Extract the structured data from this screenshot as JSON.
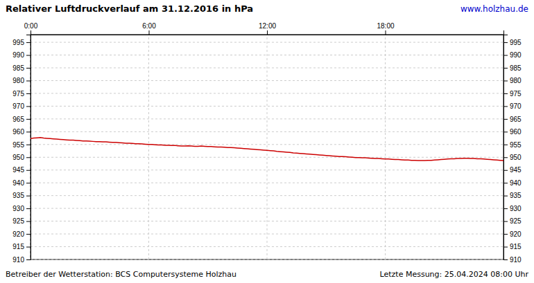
{
  "chart_data": {
    "type": "line",
    "title": "Relativer Luftdruckverlauf am 31.12.2016 in hPa",
    "annotations": [
      {
        "text": "www.holzhau.de",
        "color": "#0000cc"
      },
      {
        "text": "Betreiber der Wetterstation: BCS Computersysteme Holzhau",
        "color": "#000000"
      },
      {
        "text": "Letzte Messung: 25.04.2024 08:00 Uhr",
        "color": "#000000"
      }
    ],
    "color": "#cc0000",
    "grid": true,
    "xlim": [
      0,
      1440
    ],
    "xticks": [
      {
        "value": 0,
        "label": "0:00"
      },
      {
        "value": 360,
        "label": "6:00"
      },
      {
        "value": 720,
        "label": "12:00"
      },
      {
        "value": 1080,
        "label": "18:00"
      }
    ],
    "ylim": [
      910,
      998
    ],
    "yticks": [
      910,
      915,
      920,
      925,
      930,
      935,
      940,
      945,
      950,
      955,
      960,
      965,
      970,
      975,
      980,
      985,
      990,
      995
    ],
    "y2lim": [
      910,
      998
    ],
    "y2ticks": [
      910,
      915,
      920,
      925,
      930,
      935,
      940,
      945,
      950,
      955,
      960,
      965,
      970,
      975,
      980,
      985,
      990,
      995
    ],
    "x": [
      0,
      10,
      20,
      30,
      40,
      50,
      60,
      70,
      80,
      90,
      100,
      110,
      120,
      130,
      140,
      150,
      160,
      170,
      180,
      190,
      200,
      210,
      220,
      230,
      240,
      250,
      260,
      270,
      280,
      290,
      300,
      310,
      320,
      330,
      340,
      350,
      360,
      370,
      380,
      390,
      400,
      410,
      420,
      430,
      440,
      450,
      460,
      470,
      480,
      490,
      500,
      510,
      520,
      530,
      540,
      550,
      560,
      570,
      580,
      590,
      600,
      610,
      620,
      630,
      640,
      650,
      660,
      670,
      680,
      690,
      700,
      710,
      720,
      730,
      740,
      750,
      760,
      770,
      780,
      790,
      800,
      810,
      820,
      830,
      840,
      850,
      860,
      870,
      880,
      890,
      900,
      910,
      920,
      930,
      940,
      950,
      960,
      970,
      980,
      990,
      1000,
      1010,
      1020,
      1030,
      1040,
      1050,
      1060,
      1070,
      1080,
      1090,
      1100,
      1110,
      1120,
      1130,
      1140,
      1150,
      1160,
      1170,
      1180,
      1190,
      1200,
      1210,
      1220,
      1230,
      1240,
      1250,
      1260,
      1270,
      1280,
      1290,
      1300,
      1310,
      1320,
      1330,
      1340,
      1350,
      1360,
      1370,
      1380,
      1390,
      1400,
      1410,
      1420,
      1430,
      1440
    ],
    "values": [
      957.3,
      957.5,
      957.6,
      957.7,
      957.5,
      957.4,
      957.3,
      957.2,
      957.1,
      957.0,
      956.9,
      956.8,
      956.7,
      956.7,
      956.6,
      956.5,
      956.4,
      956.4,
      956.3,
      956.2,
      956.1,
      956.1,
      956.0,
      956.0,
      955.9,
      955.8,
      955.8,
      955.7,
      955.6,
      955.5,
      955.5,
      955.4,
      955.3,
      955.3,
      955.2,
      955.1,
      955.0,
      955.0,
      954.9,
      954.8,
      954.8,
      954.7,
      954.7,
      954.6,
      954.6,
      954.5,
      954.4,
      954.4,
      954.5,
      954.4,
      954.3,
      954.3,
      954.4,
      954.3,
      954.2,
      954.2,
      954.1,
      954.0,
      954.0,
      953.9,
      953.8,
      953.8,
      953.7,
      953.6,
      953.5,
      953.4,
      953.3,
      953.2,
      953.1,
      953.0,
      952.9,
      952.8,
      952.7,
      952.6,
      952.5,
      952.3,
      952.2,
      952.1,
      952.0,
      951.9,
      951.7,
      951.6,
      951.5,
      951.4,
      951.3,
      951.2,
      951.1,
      951.0,
      950.9,
      950.8,
      950.7,
      950.6,
      950.5,
      950.4,
      950.3,
      950.3,
      950.2,
      950.1,
      950.0,
      949.9,
      949.9,
      949.8,
      949.8,
      949.7,
      949.6,
      949.5,
      949.5,
      949.4,
      949.3,
      949.3,
      949.2,
      949.1,
      949.1,
      949.0,
      948.9,
      948.9,
      948.8,
      948.8,
      948.7,
      948.7,
      948.7,
      948.8,
      948.8,
      948.9,
      949.0,
      949.1,
      949.2,
      949.3,
      949.4,
      949.4,
      949.5,
      949.5,
      949.6,
      949.6,
      949.5,
      949.5,
      949.4,
      949.4,
      949.3,
      949.2,
      949.1,
      949.0,
      948.9,
      948.8,
      948.7
    ]
  }
}
